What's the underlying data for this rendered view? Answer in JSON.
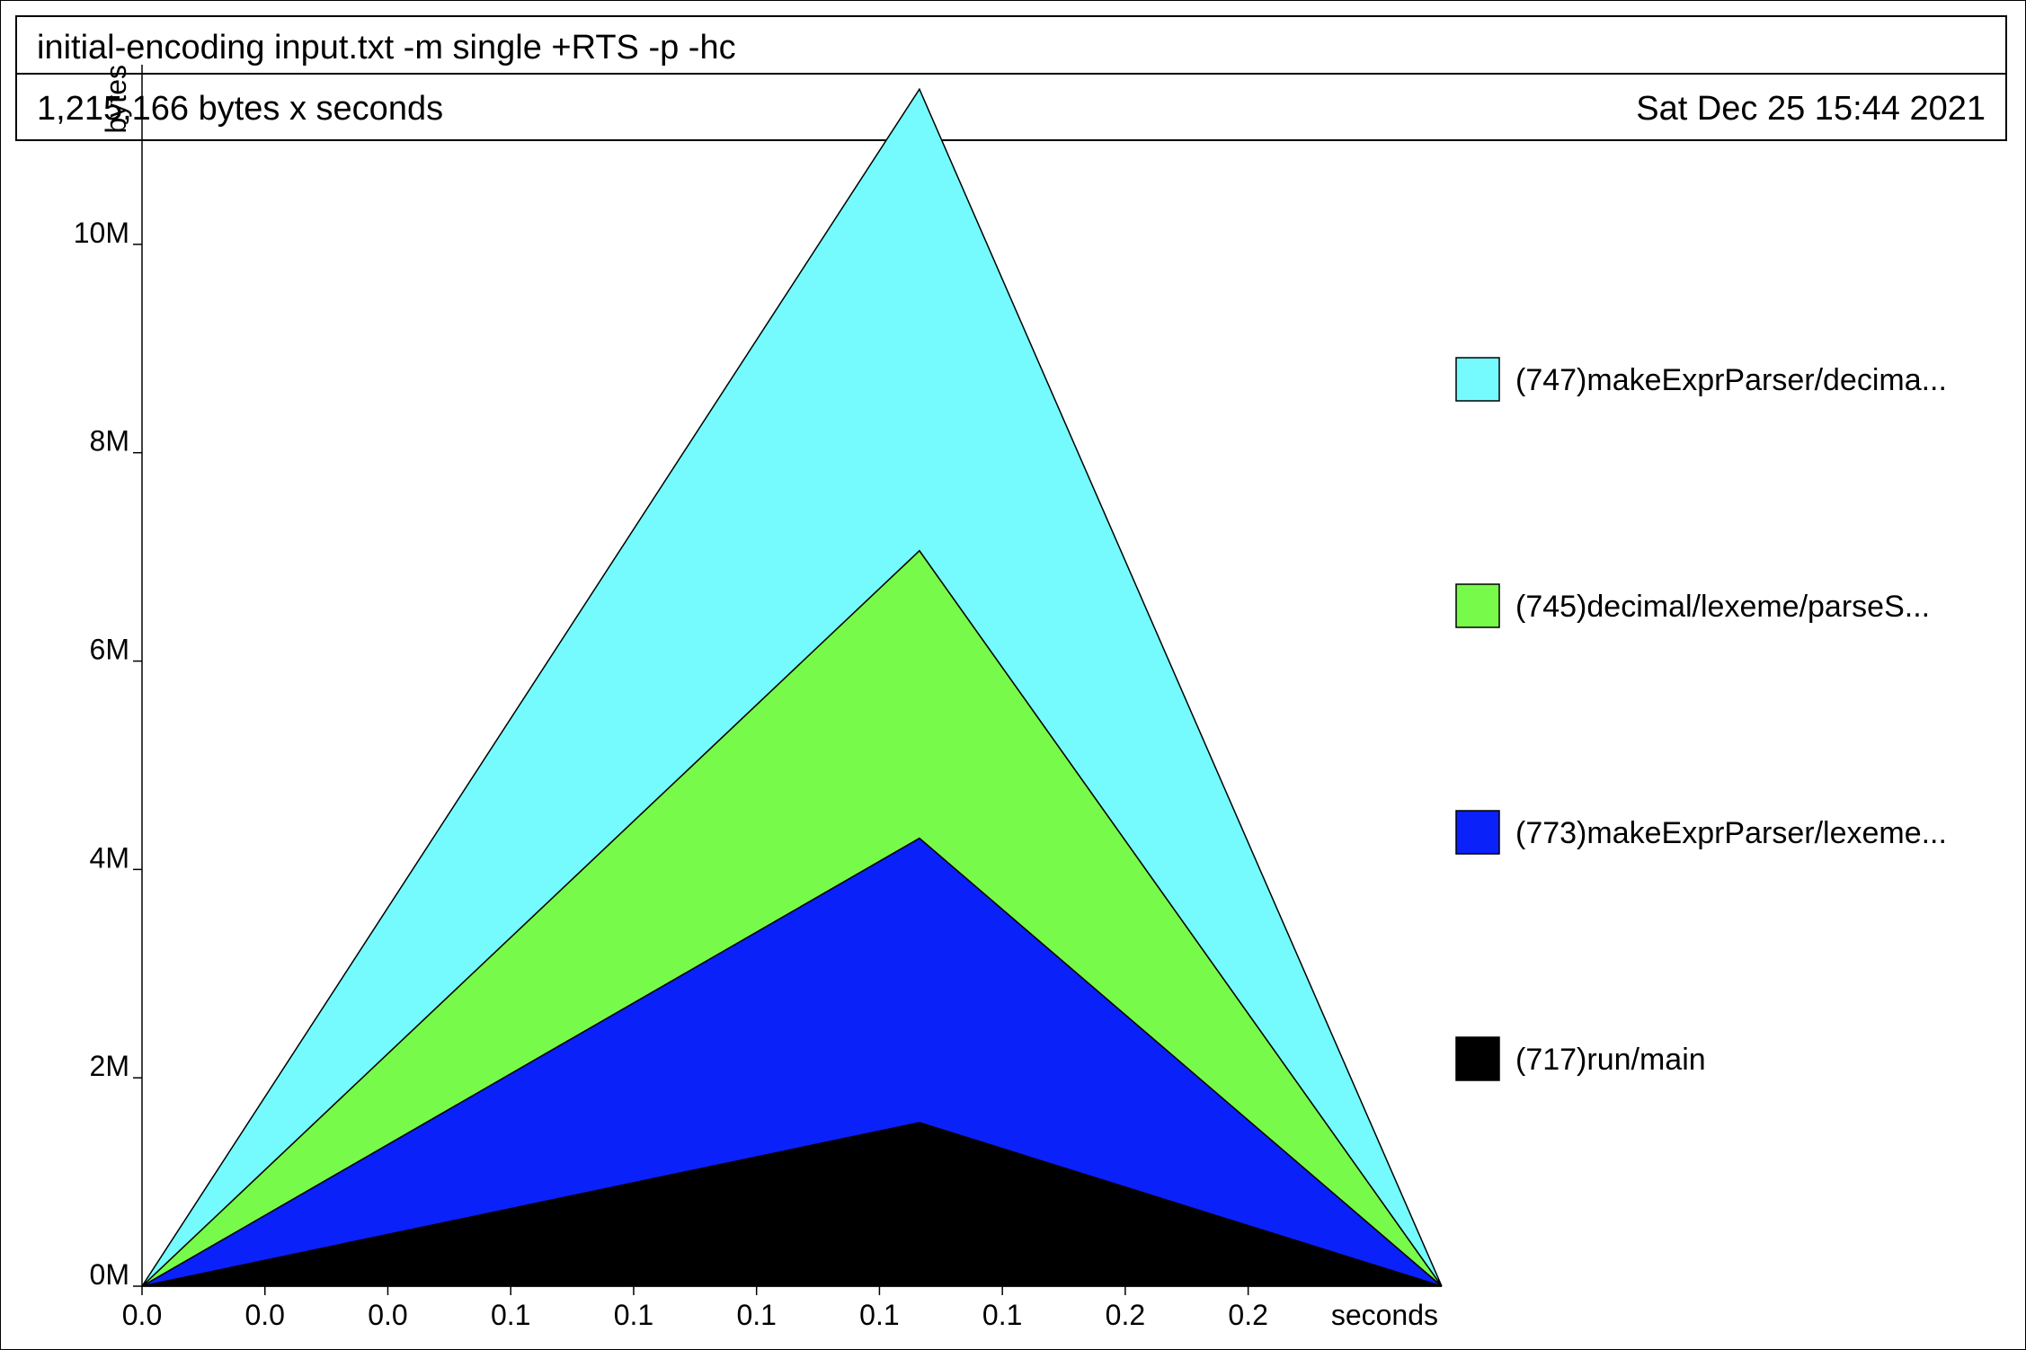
{
  "header": {
    "title": "initial-encoding input.txt -m single +RTS -p -hc",
    "total": "1,215,166 bytes x seconds",
    "date": "Sat Dec 25 15:44 2021"
  },
  "chart_data": {
    "type": "area",
    "stacked": true,
    "ylabel": "bytes",
    "xlabel": "seconds",
    "ylim": [
      0,
      11500000
    ],
    "y_ticks": [
      {
        "value": 0,
        "label": "0M"
      },
      {
        "value": 2000000,
        "label": "2M"
      },
      {
        "value": 4000000,
        "label": "4M"
      },
      {
        "value": 6000000,
        "label": "6M"
      },
      {
        "value": 8000000,
        "label": "8M"
      },
      {
        "value": 10000000,
        "label": "10M"
      }
    ],
    "xlim": [
      0,
      0.2115
    ],
    "x_ticks": [
      {
        "value": 0.0,
        "label": "0.0"
      },
      {
        "value": 0.02,
        "label": "0.0"
      },
      {
        "value": 0.04,
        "label": "0.0"
      },
      {
        "value": 0.06,
        "label": "0.1"
      },
      {
        "value": 0.08,
        "label": "0.1"
      },
      {
        "value": 0.1,
        "label": "0.1"
      },
      {
        "value": 0.12,
        "label": "0.1"
      },
      {
        "value": 0.14,
        "label": "0.1"
      },
      {
        "value": 0.16,
        "label": "0.2"
      },
      {
        "value": 0.18,
        "label": "0.2"
      }
    ],
    "x": [
      0,
      0.1265,
      0.2115
    ],
    "series": [
      {
        "name": "(717)run/main",
        "color": "#000000",
        "values": [
          0,
          1570000,
          0
        ]
      },
      {
        "name": "(773)makeExprParser/lexeme...",
        "color": "#0a21fa",
        "values": [
          0,
          2730000,
          0
        ]
      },
      {
        "name": "(745)decimal/lexeme/parseS...",
        "color": "#78fa4a",
        "values": [
          0,
          2760000,
          0
        ]
      },
      {
        "name": "(747)makeExprParser/decima...",
        "color": "#75fbfd",
        "values": [
          0,
          4430000,
          0
        ]
      }
    ],
    "legend_order": [
      3,
      2,
      1,
      0
    ],
    "legend_position": "right",
    "grid": false
  }
}
